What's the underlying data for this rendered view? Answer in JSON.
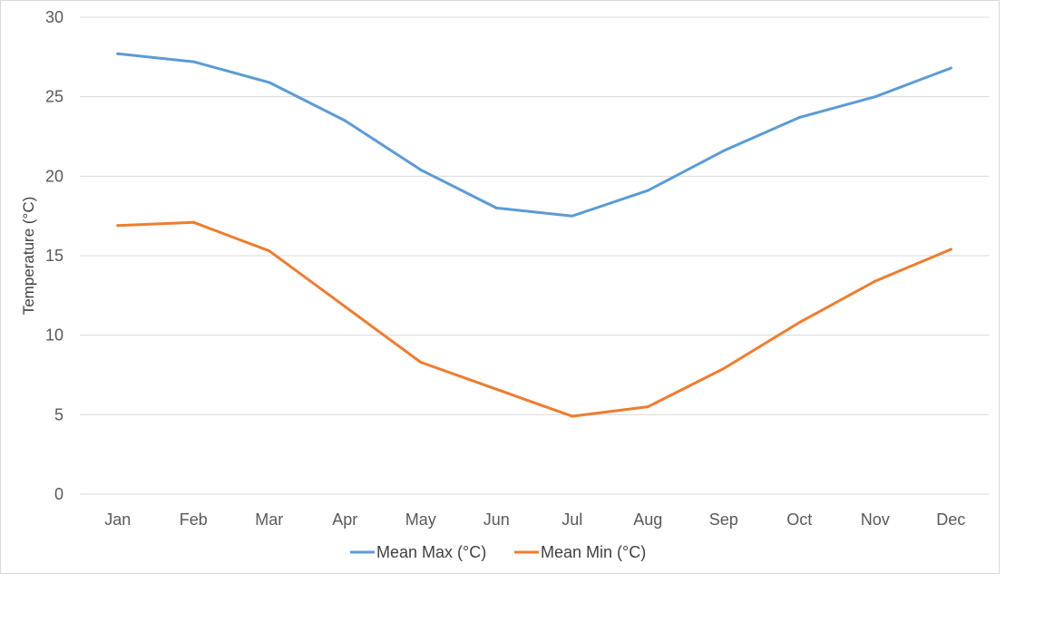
{
  "chart_data": {
    "type": "line",
    "title": "",
    "xlabel": "",
    "ylabel": "Temperature (°C)",
    "ylim": [
      0,
      30
    ],
    "yticks": [
      0,
      5,
      10,
      15,
      20,
      25,
      30
    ],
    "grid": true,
    "legend_position": "bottom",
    "categories": [
      "Jan",
      "Feb",
      "Mar",
      "Apr",
      "May",
      "Jun",
      "Jul",
      "Aug",
      "Sep",
      "Oct",
      "Nov",
      "Dec"
    ],
    "series": [
      {
        "name": "Mean Max (°C)",
        "color": "#5b9bd5",
        "values": [
          27.7,
          27.2,
          25.9,
          23.5,
          20.4,
          18.0,
          17.5,
          19.1,
          21.6,
          23.7,
          25.0,
          26.8
        ]
      },
      {
        "name": "Mean Min (°C)",
        "color": "#ed7d31",
        "values": [
          16.9,
          17.1,
          15.3,
          11.8,
          8.3,
          6.6,
          4.9,
          5.5,
          7.9,
          10.8,
          13.4,
          15.4
        ]
      }
    ]
  }
}
